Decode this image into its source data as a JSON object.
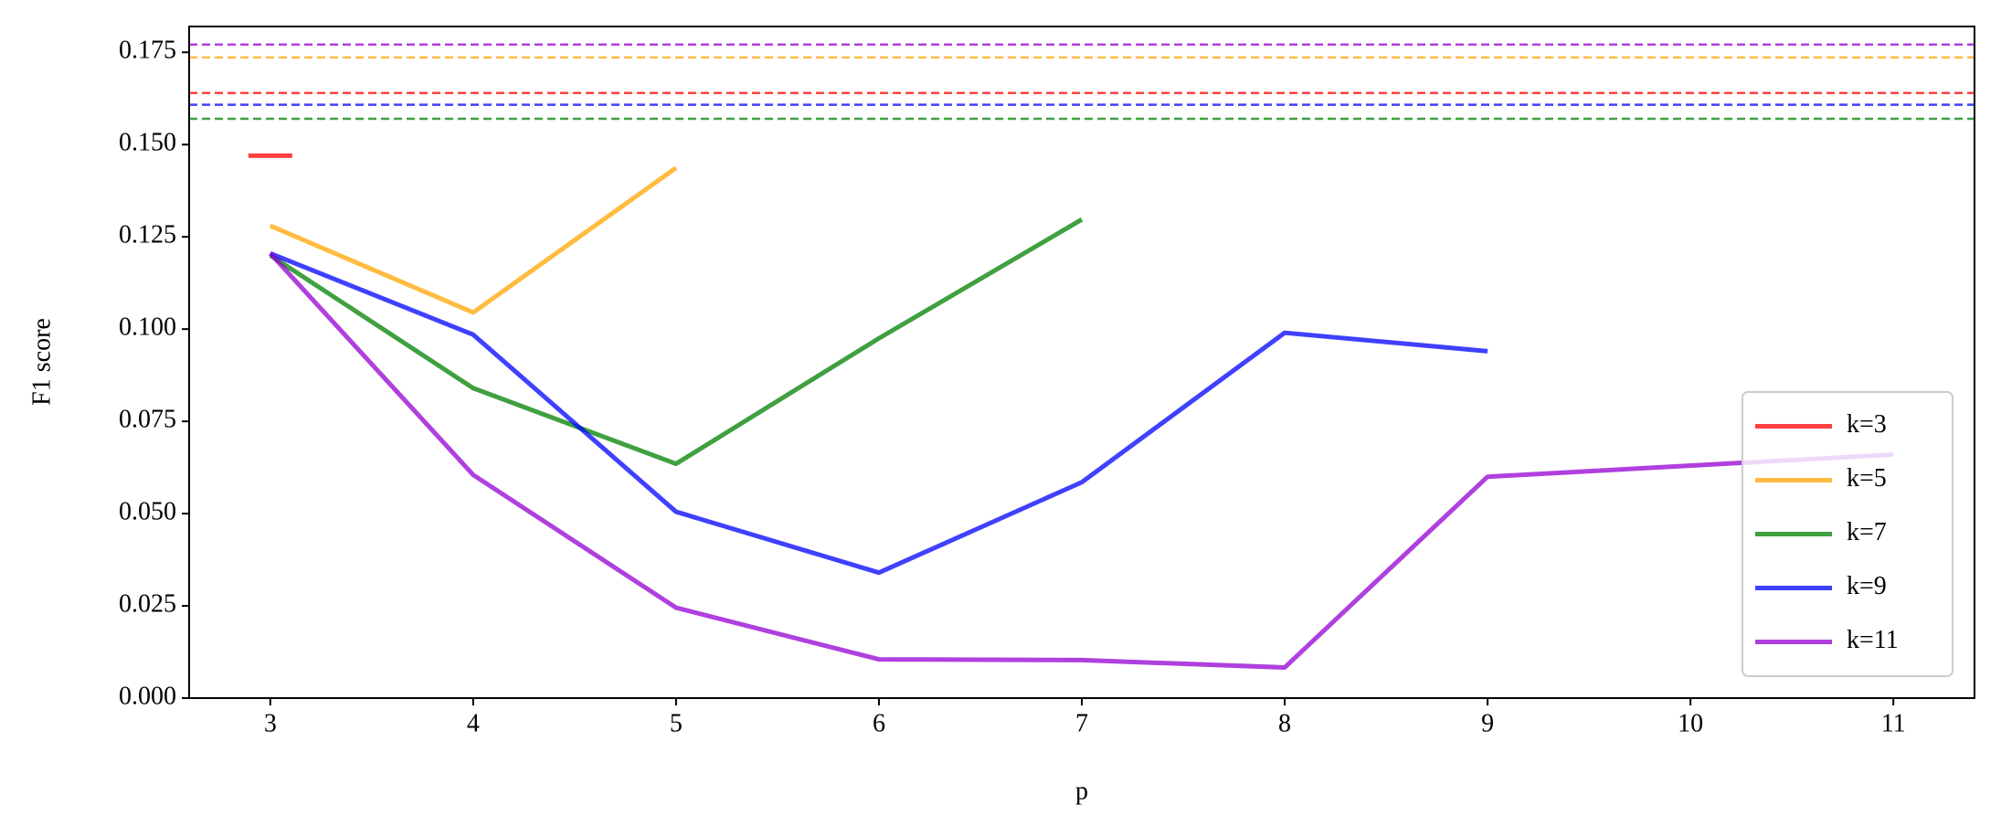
{
  "chart_data": {
    "type": "line",
    "xlabel": "p",
    "ylabel": "F1 score",
    "xlim": [
      2.6,
      11.4
    ],
    "ylim": [
      0,
      0.182
    ],
    "xticks": [
      3,
      4,
      5,
      6,
      7,
      8,
      9,
      10,
      11
    ],
    "yticks": [
      {
        "value": 0,
        "label": "0.000"
      },
      0.025,
      {
        "value": 0.05,
        "label": "0.050"
      },
      0.075,
      {
        "value": 0.1,
        "label": "0.100"
      },
      0.125,
      {
        "value": 0.15,
        "label": "0.150"
      },
      0.175
    ],
    "legend": "lower right",
    "series": [
      {
        "name": "k=3",
        "color": "#ff0000",
        "x": [
          3
        ],
        "values": [
          0.147
        ],
        "baseline": 0.164
      },
      {
        "name": "k=5",
        "color": "#ffa500",
        "x": [
          3,
          4,
          5
        ],
        "values": [
          0.128,
          0.1045,
          0.1437
        ],
        "baseline": 0.1736
      },
      {
        "name": "k=7",
        "color": "#008000",
        "x": [
          3,
          4,
          5,
          6,
          7
        ],
        "values": [
          0.12,
          0.084,
          0.0635,
          0.0975,
          0.1297
        ],
        "baseline": 0.157
      },
      {
        "name": "k=9",
        "color": "#0000ff",
        "x": [
          3,
          4,
          5,
          6,
          7,
          8,
          9
        ],
        "values": [
          0.1205,
          0.0985,
          0.0505,
          0.034,
          0.0585,
          0.099,
          0.094
        ],
        "baseline": 0.1608
      },
      {
        "name": "k=11",
        "color": "#9400d3",
        "x": [
          3,
          4,
          5,
          6,
          7,
          8,
          9,
          11
        ],
        "values": [
          0.1205,
          0.0605,
          0.0245,
          0.0105,
          0.0103,
          0.0083,
          0.06,
          0.066
        ],
        "baseline": 0.1771
      }
    ]
  }
}
